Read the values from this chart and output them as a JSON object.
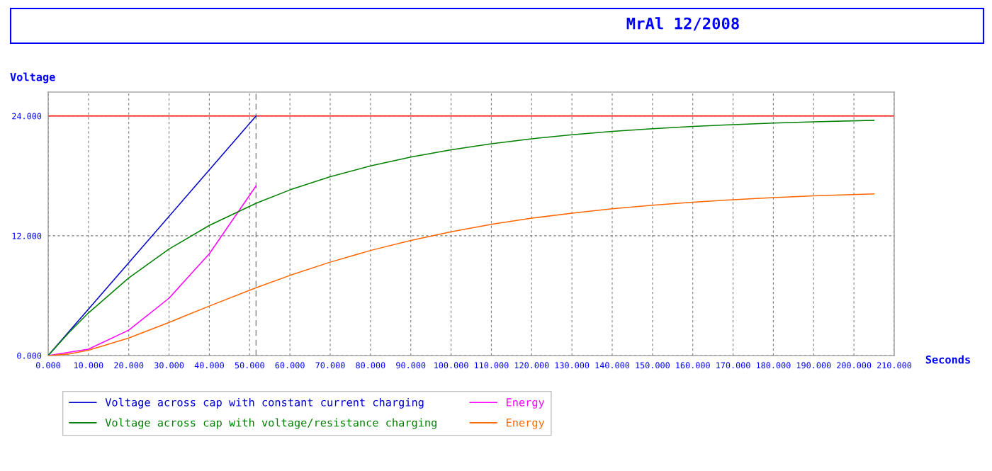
{
  "chart_data": {
    "type": "line",
    "title": "MrAl 12/2008",
    "ylabel": "Voltage",
    "xlabel": "Seconds",
    "xlim": [
      0,
      210
    ],
    "ylim": [
      0,
      26.4
    ],
    "xticks": [
      {
        "value": 0,
        "label": "0.000"
      },
      {
        "value": 10,
        "label": "10.000"
      },
      {
        "value": 20,
        "label": "20.000"
      },
      {
        "value": 30,
        "label": "30.000"
      },
      {
        "value": 40,
        "label": "40.000"
      },
      {
        "value": 50,
        "label": "50.000"
      },
      {
        "value": 60,
        "label": "60.000"
      },
      {
        "value": 70,
        "label": "70.000"
      },
      {
        "value": 80,
        "label": "80.000"
      },
      {
        "value": 90,
        "label": "90.000"
      },
      {
        "value": 100,
        "label": "100.000"
      },
      {
        "value": 110,
        "label": "110.000"
      },
      {
        "value": 120,
        "label": "120.000"
      },
      {
        "value": 130,
        "label": "130.000"
      },
      {
        "value": 140,
        "label": "140.000"
      },
      {
        "value": 150,
        "label": "150.000"
      },
      {
        "value": 160,
        "label": "160.000"
      },
      {
        "value": 170,
        "label": "170.000"
      },
      {
        "value": 180,
        "label": "180.000"
      },
      {
        "value": 190,
        "label": "190.000"
      },
      {
        "value": 200,
        "label": "200.000"
      },
      {
        "value": 210,
        "label": "210.000"
      }
    ],
    "yticks": [
      {
        "value": 0,
        "label": "0.000"
      },
      {
        "value": 12,
        "label": "12.000"
      },
      {
        "value": 24,
        "label": "24.000"
      }
    ],
    "grid": true,
    "legend": "bottom left",
    "line_style": "solid",
    "marker": "none",
    "ref_lines": [
      {
        "axis": "y",
        "value": 24,
        "label": null,
        "color": "#ff0000",
        "line_style": "solid"
      },
      {
        "axis": "x",
        "value": 51.6,
        "label": null,
        "color": "#808080",
        "line_style": "dashed"
      }
    ],
    "series": [
      {
        "name": "Voltage across cap with constant current charging",
        "color": "#0000cc",
        "x": [
          0,
          51.6
        ],
        "values": [
          0,
          24
        ]
      },
      {
        "name": "Energy",
        "color": "#ff00ff",
        "x": [
          0,
          10,
          20,
          30,
          40,
          51.6
        ],
        "values": [
          0,
          0.64,
          2.55,
          5.75,
          10.2,
          17
        ]
      },
      {
        "name": "Voltage across cap with voltage/resistance charging",
        "color": "#008000",
        "x": [
          0,
          5,
          10,
          20,
          30,
          40,
          51.6,
          60,
          70,
          80,
          90,
          100,
          110,
          120,
          130,
          140,
          150,
          160,
          170,
          180,
          190,
          205
        ],
        "values": [
          0,
          2.24,
          4.27,
          7.78,
          10.67,
          13.04,
          15.26,
          16.6,
          17.92,
          19.0,
          19.89,
          20.62,
          21.22,
          21.72,
          22.12,
          22.46,
          22.73,
          22.96,
          23.14,
          23.3,
          23.42,
          23.57
        ]
      },
      {
        "name": "Energy",
        "color": "#ff6600",
        "x": [
          0,
          5,
          10,
          20,
          30,
          40,
          51.6,
          60,
          70,
          80,
          90,
          100,
          110,
          120,
          130,
          140,
          150,
          160,
          170,
          180,
          190,
          205
        ],
        "values": [
          0,
          0.15,
          0.53,
          1.76,
          3.32,
          4.96,
          6.8,
          8.03,
          9.36,
          10.53,
          11.54,
          12.41,
          13.14,
          13.76,
          14.27,
          14.71,
          15.07,
          15.37,
          15.62,
          15.83,
          16.0,
          16.2
        ]
      }
    ]
  }
}
